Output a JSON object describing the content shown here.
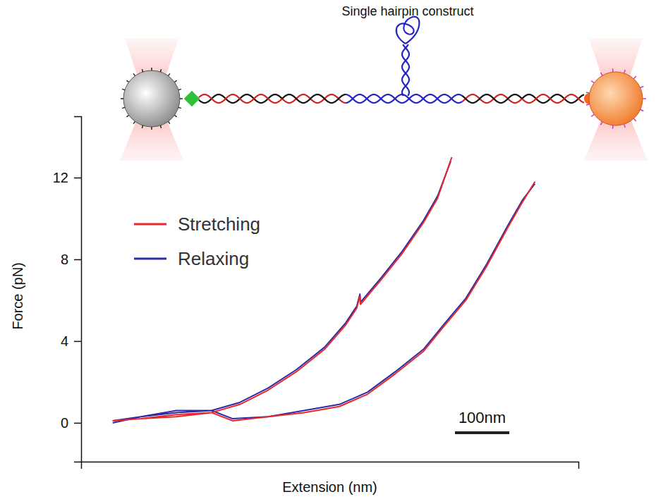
{
  "diagram": {
    "title": "Single hairpin construct"
  },
  "chart_data": {
    "type": "line",
    "y_label": "Force (pN)",
    "x_label": "Extension (nm)",
    "xlim": [
      0,
      915
    ],
    "xticks": [],
    "ylim": [
      -1.9,
      15
    ],
    "yticks": [
      0,
      4,
      8,
      12
    ],
    "tick_labels": "y",
    "legend": "upper left",
    "annotations": [
      {
        "text": "100nm",
        "length": 100
      }
    ],
    "series": [
      {
        "name": "Relaxing",
        "color": "#2b2ba6",
        "x": [
          58,
          110,
          175,
          240,
          292,
          344,
          396,
          448,
          487,
          507,
          513,
          514,
          552,
          591,
          630,
          656,
          680,
          null,
          58,
          110,
          175,
          240,
          279,
          344,
          410,
          475,
          527,
          578,
          630,
          670,
          708,
          747,
          786,
          812,
          835
        ],
        "values": [
          0.1,
          0.3,
          0.5,
          0.6,
          1.0,
          1.7,
          2.6,
          3.7,
          4.9,
          5.7,
          6.3,
          5.9,
          7.1,
          8.4,
          9.9,
          11.1,
          12.8,
          null,
          0.0,
          0.3,
          0.6,
          0.6,
          0.2,
          0.3,
          0.6,
          0.9,
          1.5,
          2.5,
          3.6,
          4.9,
          6.1,
          7.8,
          9.7,
          10.9,
          11.7
        ]
      },
      {
        "name": "Stretching",
        "color": "#e8262b",
        "x": [
          58,
          110,
          175,
          240,
          292,
          344,
          396,
          448,
          487,
          507,
          513,
          514,
          552,
          591,
          630,
          656,
          682,
          null,
          58,
          110,
          175,
          240,
          279,
          344,
          410,
          475,
          527,
          578,
          630,
          670,
          708,
          747,
          786,
          812,
          835
        ],
        "values": [
          0.1,
          0.2,
          0.3,
          0.5,
          0.9,
          1.6,
          2.5,
          3.6,
          4.8,
          5.6,
          6.2,
          5.8,
          7.0,
          8.3,
          9.8,
          11.0,
          13.0,
          null,
          0.1,
          0.2,
          0.4,
          0.5,
          0.1,
          0.3,
          0.5,
          0.8,
          1.4,
          2.4,
          3.5,
          4.8,
          6.0,
          7.7,
          9.6,
          10.8,
          11.8
        ]
      }
    ]
  }
}
